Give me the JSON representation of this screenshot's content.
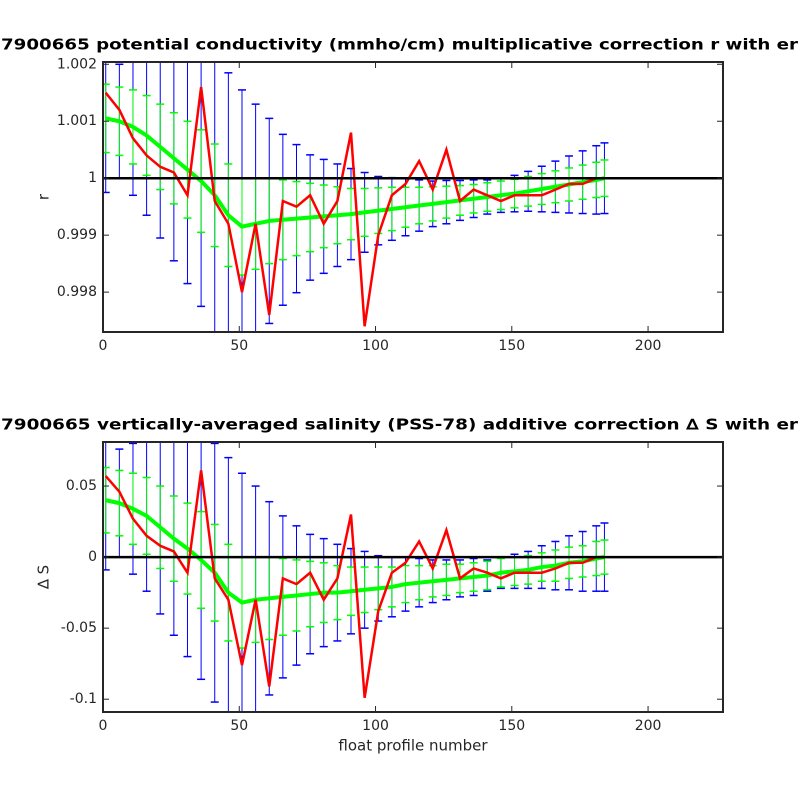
{
  "chart_data": [
    {
      "type": "errorbar",
      "title": "7900665 potential conductivity (mmho/cm) multiplicative correction r with er",
      "ylabel": "r",
      "x": [
        1,
        6,
        11,
        16,
        21,
        26,
        31,
        36,
        41,
        46,
        51,
        56,
        61,
        66,
        71,
        76,
        81,
        86,
        91,
        96,
        101,
        106,
        111,
        116,
        121,
        126,
        131,
        136,
        141,
        146,
        151,
        156,
        161,
        166,
        171,
        176,
        181,
        184
      ],
      "xlim": [
        0,
        227.5
      ],
      "xticks": [
        0,
        50,
        100,
        150,
        200
      ],
      "ylim": [
        0.9973,
        1.00204
      ],
      "yticks": [
        0.998,
        0.999,
        1,
        1.001,
        1.002
      ],
      "reference_line": 1,
      "series": [
        {
          "color": "#0000ff",
          "values": [
            1.00105,
            1.001,
            1.0009,
            1.00075,
            1.00055,
            1.00035,
            1.00015,
            0.99995,
            0.9997,
            0.99935,
            0.99915,
            0.9992,
            0.99925,
            0.99927,
            0.99929,
            0.99931,
            0.99933,
            0.99935,
            0.99937,
            0.9994,
            0.99943,
            0.99946,
            0.99949,
            0.99952,
            0.99955,
            0.99958,
            0.99961,
            0.99964,
            0.99967,
            0.9997,
            0.99973,
            0.99977,
            0.99981,
            0.99985,
            0.99989,
            0.99993,
            0.99997,
            1
          ],
          "errors": [
            0.0013,
            0.001,
            0.0012,
            0.0014,
            0.0016,
            0.0018,
            0.002,
            0.0022,
            0.0024,
            0.0025,
            0.0024,
            0.0021,
            0.0018,
            0.0015,
            0.0013,
            0.0011,
            0.001,
            0.0009,
            0.0008,
            0.0007,
            0.0006,
            0.00055,
            0.0005,
            0.00045,
            0.0004,
            0.00038,
            0.00035,
            0.00033,
            0.0003,
            0.0003,
            0.00032,
            0.00035,
            0.0004,
            0.00045,
            0.0005,
            0.00055,
            0.0006,
            0.00062
          ]
        },
        {
          "color": "#00ff00",
          "center_line": true,
          "values": [
            1.00105,
            1.001,
            1.0009,
            1.00075,
            1.00055,
            1.00035,
            1.00015,
            0.99995,
            0.9997,
            0.99935,
            0.99915,
            0.9992,
            0.99925,
            0.99927,
            0.99929,
            0.99931,
            0.99933,
            0.99935,
            0.99937,
            0.9994,
            0.99943,
            0.99946,
            0.99949,
            0.99952,
            0.99955,
            0.99958,
            0.99961,
            0.99964,
            0.99967,
            0.9997,
            0.99973,
            0.99977,
            0.99981,
            0.99985,
            0.99989,
            0.99993,
            0.99997,
            1
          ],
          "errors": [
            0.0006,
            0.0006,
            0.00065,
            0.0007,
            0.00075,
            0.0008,
            0.00085,
            0.0009,
            0.0009,
            0.0009,
            0.00085,
            0.0008,
            0.00075,
            0.0007,
            0.00065,
            0.0006,
            0.00055,
            0.0005,
            0.00045,
            0.00042,
            0.0004,
            0.00038,
            0.00035,
            0.00032,
            0.0003,
            0.00028,
            0.00026,
            0.00025,
            0.00025,
            0.00025,
            0.00025,
            0.00026,
            0.00027,
            0.00028,
            0.00029,
            0.0003,
            0.00031,
            0.00032
          ]
        },
        {
          "color": "#ff0000",
          "values": [
            1.0015,
            1.0012,
            1.0007,
            1.0004,
            1.0002,
            1.0001,
            0.9997,
            1.0016,
            0.9996,
            0.9992,
            0.998,
            0.9992,
            0.9976,
            0.9996,
            0.9995,
            0.9997,
            0.9992,
            0.9996,
            1.0008,
            0.9974,
            0.999,
            0.9997,
            0.9999,
            1.0003,
            0.9998,
            1.0005,
            0.9996,
            0.9998,
            0.9997,
            0.9996,
            0.9997,
            0.9997,
            0.9997,
            0.9998,
            0.9999,
            0.9999,
            1,
            1
          ]
        }
      ]
    },
    {
      "type": "errorbar",
      "title": "7900665 vertically-averaged salinity (PSS-78) additive correction ∆ S with er",
      "ylabel": "∆ S",
      "xlabel": "float profile number",
      "x": [
        1,
        6,
        11,
        16,
        21,
        26,
        31,
        36,
        41,
        46,
        51,
        56,
        61,
        66,
        71,
        76,
        81,
        86,
        91,
        96,
        101,
        106,
        111,
        116,
        121,
        126,
        131,
        136,
        141,
        146,
        151,
        156,
        161,
        166,
        171,
        176,
        181,
        184
      ],
      "xlim": [
        0,
        227.5
      ],
      "xticks": [
        0,
        50,
        100,
        150,
        200
      ],
      "ylim": [
        -0.109,
        0.081
      ],
      "yticks": [
        -0.1,
        -0.05,
        0,
        0.05
      ],
      "reference_line": 0,
      "series": [
        {
          "color": "#0000ff",
          "values": [
            0.04,
            0.038,
            0.034,
            0.029,
            0.021,
            0.013,
            0.006,
            -0.002,
            -0.011,
            -0.025,
            -0.032,
            -0.03,
            -0.029,
            -0.028,
            -0.027,
            -0.026,
            -0.025,
            -0.025,
            -0.024,
            -0.023,
            -0.022,
            -0.021,
            -0.019,
            -0.018,
            -0.017,
            -0.016,
            -0.015,
            -0.014,
            -0.013,
            -0.011,
            -0.01,
            -0.009,
            -0.007,
            -0.006,
            -0.004,
            -0.003,
            -0.001,
            0
          ],
          "errors": [
            0.049,
            0.038,
            0.046,
            0.053,
            0.061,
            0.068,
            0.076,
            0.084,
            0.091,
            0.095,
            0.091,
            0.08,
            0.068,
            0.057,
            0.049,
            0.042,
            0.038,
            0.034,
            0.03,
            0.027,
            0.023,
            0.021,
            0.019,
            0.017,
            0.015,
            0.014,
            0.013,
            0.013,
            0.011,
            0.011,
            0.012,
            0.013,
            0.015,
            0.017,
            0.019,
            0.021,
            0.023,
            0.024
          ]
        },
        {
          "color": "#00ff00",
          "center_line": true,
          "values": [
            0.04,
            0.038,
            0.034,
            0.029,
            0.021,
            0.013,
            0.006,
            -0.002,
            -0.011,
            -0.025,
            -0.032,
            -0.03,
            -0.029,
            -0.028,
            -0.027,
            -0.026,
            -0.025,
            -0.025,
            -0.024,
            -0.023,
            -0.022,
            -0.021,
            -0.019,
            -0.018,
            -0.017,
            -0.016,
            -0.015,
            -0.014,
            -0.013,
            -0.011,
            -0.01,
            -0.009,
            -0.007,
            -0.006,
            -0.004,
            -0.003,
            -0.001,
            0
          ],
          "errors": [
            0.023,
            0.023,
            0.025,
            0.027,
            0.029,
            0.03,
            0.032,
            0.034,
            0.034,
            0.034,
            0.032,
            0.03,
            0.029,
            0.027,
            0.025,
            0.023,
            0.021,
            0.019,
            0.017,
            0.016,
            0.015,
            0.014,
            0.013,
            0.012,
            0.011,
            0.011,
            0.01,
            0.01,
            0.01,
            0.01,
            0.01,
            0.01,
            0.01,
            0.011,
            0.011,
            0.011,
            0.012,
            0.012
          ]
        },
        {
          "color": "#ff0000",
          "values": [
            0.057,
            0.046,
            0.027,
            0.015,
            0.008,
            0.004,
            -0.011,
            0.061,
            -0.015,
            -0.03,
            -0.076,
            -0.03,
            -0.091,
            -0.015,
            -0.019,
            -0.011,
            -0.03,
            -0.015,
            0.03,
            -0.099,
            -0.038,
            -0.011,
            -0.004,
            0.011,
            -0.008,
            0.019,
            -0.015,
            -0.008,
            -0.011,
            -0.015,
            -0.011,
            -0.011,
            -0.011,
            -0.008,
            -0.004,
            -0.004,
            0,
            0
          ]
        }
      ]
    }
  ]
}
